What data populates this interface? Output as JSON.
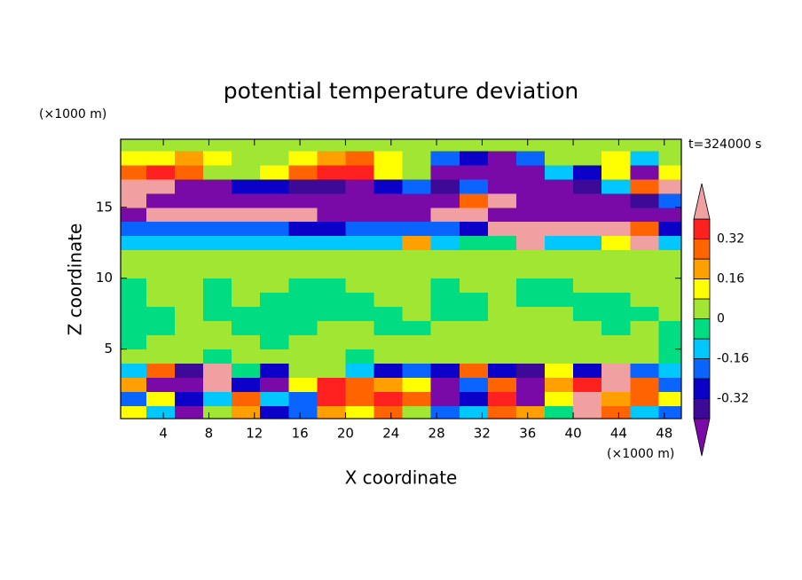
{
  "chart_data": {
    "type": "contour",
    "title": "potential temperature deviation",
    "x_label": "X coordinate",
    "y_label": "Z coordinate",
    "x_unit": "(×1000 m)",
    "y_unit": "(×1000 m)",
    "time_label": "t=324000 s",
    "xlim": [
      0.25,
      49.5
    ],
    "ylim": [
      0.1,
      19.8
    ],
    "xticks": [
      4,
      8,
      12,
      16,
      20,
      24,
      28,
      32,
      36,
      40,
      44,
      48
    ],
    "yticks": [
      5,
      10,
      15
    ],
    "colorbar": {
      "levels": [
        -0.4,
        -0.32,
        -0.24,
        -0.16,
        -0.08,
        0,
        0.08,
        0.16,
        0.24,
        0.32,
        0.4
      ],
      "colors": [
        "#7a0aa8",
        "#3c0a96",
        "#0a00c8",
        "#0a64ff",
        "#00c8ff",
        "#00dc82",
        "#a0e632",
        "#ffff00",
        "#ffa000",
        "#ff6400",
        "#ff2020",
        "#f0a0a0"
      ],
      "ticks": [
        -0.32,
        -0.16,
        0,
        0.16,
        0.32
      ]
    },
    "field": {
      "x": [
        1.25,
        3.75,
        6.25,
        8.75,
        11.25,
        13.75,
        16.25,
        18.75,
        21.25,
        23.75,
        26.25,
        28.75,
        31.25,
        33.75,
        36.25,
        38.75,
        41.25,
        43.75,
        46.25,
        48.75
      ],
      "z": [
        0.5,
        1.5,
        2.5,
        3.5,
        4.5,
        5.5,
        6.5,
        7.5,
        8.5,
        9.5,
        10.5,
        11.5,
        12.5,
        13.5,
        14.5,
        15.5,
        16.5,
        17.5,
        18.5,
        19.5
      ],
      "values": [
        [
          0.1,
          -0.1,
          -0.45,
          0.02,
          0.2,
          -0.3,
          -0.2,
          0.2,
          0.1,
          0.3,
          0.02,
          -0.2,
          -0.1,
          0.3,
          0.2,
          -0.05,
          0.5,
          0.3,
          -0.1,
          -0.2
        ],
        [
          -0.2,
          0.1,
          -0.3,
          -0.1,
          0.3,
          -0.1,
          -0.2,
          0.35,
          0.3,
          0.35,
          0.25,
          -0.45,
          -0.3,
          0.35,
          -0.45,
          0.1,
          0.4,
          0.2,
          0.25,
          0.1
        ],
        [
          0.2,
          -0.45,
          -0.5,
          0.45,
          -0.3,
          -0.45,
          0.1,
          0.35,
          0.3,
          0.2,
          0.1,
          -0.5,
          -0.2,
          0.3,
          -0.45,
          0.2,
          0.35,
          0.45,
          0.3,
          -0.2
        ],
        [
          -0.1,
          0.3,
          -0.4,
          0.5,
          -0.05,
          -0.3,
          0.02,
          0.02,
          -0.1,
          -0.3,
          -0.2,
          -0.3,
          0.3,
          -0.3,
          -0.4,
          0.1,
          -0.3,
          0.4,
          -0.2,
          -0.1
        ],
        [
          0.02,
          0.02,
          0.02,
          -0.05,
          0.02,
          0.02,
          0.02,
          0.02,
          -0.05,
          0.02,
          0.02,
          0.02,
          0.02,
          0.02,
          0.02,
          0.02,
          0.02,
          0.02,
          0.02,
          -0.05
        ],
        [
          -0.05,
          0.02,
          0.02,
          0.02,
          0.02,
          -0.05,
          0.02,
          0.02,
          0.02,
          0.02,
          0.02,
          0.02,
          0.02,
          0.02,
          0.02,
          0.02,
          0.02,
          0.02,
          0.02,
          -0.05
        ],
        [
          -0.05,
          -0.05,
          0.02,
          0.02,
          -0.05,
          -0.05,
          -0.05,
          0.02,
          0.02,
          -0.05,
          -0.05,
          0.02,
          0.02,
          0.02,
          0.02,
          0.02,
          0.02,
          -0.05,
          0.02,
          -0.05
        ],
        [
          -0.05,
          -0.05,
          0.02,
          -0.05,
          -0.05,
          -0.05,
          -0.05,
          -0.05,
          -0.05,
          -0.05,
          0.02,
          -0.05,
          -0.05,
          0.02,
          0.02,
          0.02,
          -0.05,
          -0.05,
          -0.05,
          0.02
        ],
        [
          -0.05,
          0.02,
          0.02,
          -0.05,
          0.02,
          -0.05,
          -0.05,
          -0.05,
          -0.05,
          0.02,
          0.02,
          -0.05,
          -0.05,
          0.02,
          -0.05,
          -0.05,
          -0.05,
          -0.05,
          0.02,
          0.02
        ],
        [
          -0.05,
          0.02,
          0.02,
          -0.05,
          0.02,
          0.02,
          -0.05,
          -0.05,
          0.02,
          0.02,
          0.02,
          -0.05,
          0.02,
          0.02,
          -0.05,
          -0.05,
          0.02,
          0.02,
          0.02,
          0.02
        ],
        [
          0.02,
          0.02,
          0.02,
          0.02,
          0.02,
          0.02,
          0.02,
          0.02,
          0.02,
          0.02,
          0.02,
          0.02,
          0.02,
          0.02,
          0.02,
          0.02,
          0.02,
          0.02,
          0.02,
          0.02
        ],
        [
          0.02,
          0.02,
          0.02,
          0.02,
          0.02,
          0.02,
          0.02,
          0.02,
          0.02,
          0.02,
          0.02,
          0.02,
          0.02,
          0.02,
          0.02,
          0.02,
          0.02,
          0.02,
          0.02,
          0.02
        ],
        [
          -0.1,
          -0.1,
          -0.1,
          -0.1,
          -0.1,
          -0.1,
          -0.1,
          -0.1,
          -0.1,
          -0.1,
          0.2,
          -0.1,
          -0.05,
          -0.05,
          0.45,
          -0.1,
          -0.1,
          0.1,
          0.4,
          -0.1
        ],
        [
          -0.2,
          -0.2,
          -0.2,
          -0.2,
          -0.2,
          -0.2,
          -0.3,
          -0.3,
          -0.2,
          -0.2,
          -0.2,
          -0.2,
          -0.3,
          0.5,
          0.5,
          0.5,
          0.5,
          0.45,
          0.3,
          -0.25
        ],
        [
          -0.45,
          0.5,
          0.5,
          0.5,
          0.5,
          0.5,
          0.45,
          -0.5,
          -0.5,
          -0.45,
          -0.45,
          0.5,
          0.4,
          -0.5,
          -0.45,
          -0.45,
          -0.45,
          -0.45,
          -0.45,
          -0.45
        ],
        [
          0.5,
          -0.5,
          -0.5,
          -0.5,
          -0.5,
          -0.5,
          -0.5,
          -0.5,
          -0.5,
          -0.45,
          -0.45,
          -0.5,
          0.3,
          0.45,
          -0.5,
          -0.5,
          -0.45,
          -0.45,
          -0.4,
          -0.2
        ],
        [
          0.5,
          0.45,
          -0.45,
          -0.45,
          -0.3,
          -0.3,
          -0.35,
          -0.4,
          -0.45,
          -0.3,
          -0.2,
          -0.35,
          -0.2,
          -0.45,
          -0.5,
          -0.45,
          -0.35,
          -0.1,
          0.3,
          0.5
        ],
        [
          0.3,
          0.35,
          0.3,
          0.05,
          0.02,
          0.1,
          0.3,
          0.35,
          0.35,
          0.1,
          0.02,
          -0.45,
          -0.5,
          -0.5,
          -0.45,
          -0.1,
          -0.3,
          0.1,
          -0.45,
          0.1
        ],
        [
          0.1,
          0.15,
          0.2,
          0.1,
          0.02,
          0.05,
          0.15,
          0.2,
          0.25,
          0.1,
          0.02,
          -0.2,
          -0.3,
          -0.45,
          -0.2,
          0.02,
          0.05,
          0.1,
          -0.1,
          0.02
        ],
        [
          0.05,
          0.05,
          0.02,
          0.05,
          0.05,
          0.02,
          0.05,
          0.05,
          0.02,
          0.02,
          0.02,
          0.05,
          0.02,
          0.05,
          0.02,
          0.05,
          0.02,
          0.05,
          0.02,
          0.02
        ]
      ]
    }
  }
}
